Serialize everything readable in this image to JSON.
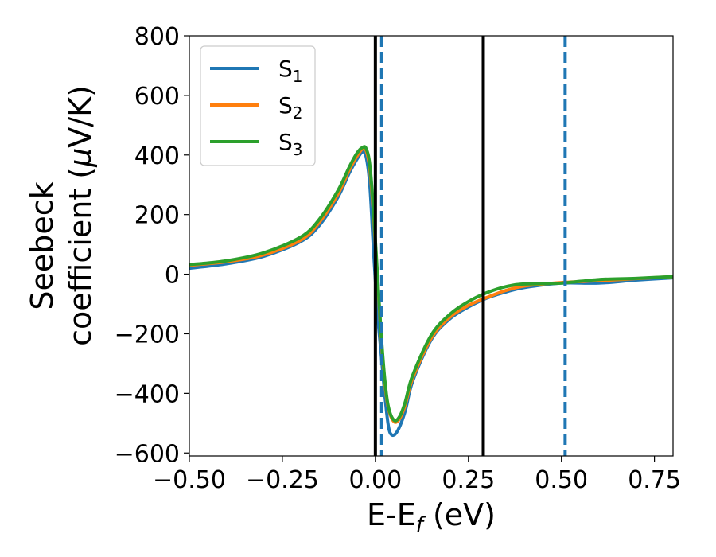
{
  "chart_data": {
    "type": "line",
    "title": "",
    "xlabel": "E-E",
    "xlabel_sub": "f",
    "xlabel_suffix": " (eV)",
    "ylabel_line1": "Seebeck",
    "ylabel_line2_prefix": "coefficient  (",
    "ylabel_mu": "μ",
    "ylabel_line2_suffix": "V/K)",
    "xlim": [
      -0.5,
      0.8
    ],
    "ylim": [
      -610,
      800
    ],
    "xticks": [
      -0.5,
      -0.25,
      0.0,
      0.25,
      0.5,
      0.75
    ],
    "xtick_labels": [
      "−0.50",
      "−0.25",
      "0.00",
      "0.25",
      "0.50",
      "0.75"
    ],
    "yticks": [
      -600,
      -400,
      -200,
      0,
      200,
      400,
      600,
      800
    ],
    "ytick_labels": [
      "−600",
      "−400",
      "−200",
      "0",
      "200",
      "400",
      "600",
      "800"
    ],
    "grid": false,
    "legend_position": "top-left",
    "vlines": [
      {
        "x": 0.0,
        "color": "#000000",
        "style": "solid"
      },
      {
        "x": 0.29,
        "color": "#000000",
        "style": "solid"
      },
      {
        "x": 0.017,
        "color": "#1f77b4",
        "style": "dashed"
      },
      {
        "x": 0.51,
        "color": "#1f77b4",
        "style": "dashed"
      }
    ],
    "series": [
      {
        "name": "S",
        "sub": "1",
        "color": "#1f77b4",
        "points": [
          [
            -0.5,
            20
          ],
          [
            -0.4,
            35
          ],
          [
            -0.3,
            60
          ],
          [
            -0.2,
            110
          ],
          [
            -0.15,
            165
          ],
          [
            -0.1,
            260
          ],
          [
            -0.07,
            340
          ],
          [
            -0.05,
            385
          ],
          [
            -0.035,
            410
          ],
          [
            -0.025,
            395
          ],
          [
            -0.015,
            300
          ],
          [
            -0.005,
            80
          ],
          [
            0.005,
            -120
          ],
          [
            0.015,
            -260
          ],
          [
            0.025,
            -400
          ],
          [
            0.035,
            -510
          ],
          [
            0.045,
            -540
          ],
          [
            0.06,
            -525
          ],
          [
            0.08,
            -460
          ],
          [
            0.1,
            -360
          ],
          [
            0.15,
            -220
          ],
          [
            0.2,
            -150
          ],
          [
            0.25,
            -110
          ],
          [
            0.3,
            -80
          ],
          [
            0.35,
            -60
          ],
          [
            0.4,
            -45
          ],
          [
            0.5,
            -30
          ],
          [
            0.6,
            -30
          ],
          [
            0.7,
            -20
          ],
          [
            0.8,
            -12
          ]
        ]
      },
      {
        "name": "S",
        "sub": "2",
        "color": "#ff7f0e",
        "points": [
          [
            -0.5,
            30
          ],
          [
            -0.4,
            42
          ],
          [
            -0.3,
            65
          ],
          [
            -0.2,
            115
          ],
          [
            -0.15,
            175
          ],
          [
            -0.1,
            270
          ],
          [
            -0.07,
            350
          ],
          [
            -0.05,
            395
          ],
          [
            -0.035,
            420
          ],
          [
            -0.025,
            415
          ],
          [
            -0.015,
            355
          ],
          [
            -0.005,
            200
          ],
          [
            0.005,
            0
          ],
          [
            0.015,
            -200
          ],
          [
            0.025,
            -360
          ],
          [
            0.035,
            -450
          ],
          [
            0.05,
            -495
          ],
          [
            0.065,
            -485
          ],
          [
            0.08,
            -440
          ],
          [
            0.1,
            -350
          ],
          [
            0.15,
            -215
          ],
          [
            0.2,
            -145
          ],
          [
            0.25,
            -105
          ],
          [
            0.3,
            -78
          ],
          [
            0.35,
            -55
          ],
          [
            0.4,
            -40
          ],
          [
            0.5,
            -28
          ],
          [
            0.6,
            -22
          ],
          [
            0.7,
            -15
          ],
          [
            0.8,
            -8
          ]
        ]
      },
      {
        "name": "S",
        "sub": "3",
        "color": "#2ca02c",
        "points": [
          [
            -0.5,
            32
          ],
          [
            -0.4,
            45
          ],
          [
            -0.3,
            72
          ],
          [
            -0.2,
            125
          ],
          [
            -0.15,
            185
          ],
          [
            -0.1,
            282
          ],
          [
            -0.07,
            360
          ],
          [
            -0.05,
            405
          ],
          [
            -0.035,
            425
          ],
          [
            -0.025,
            422
          ],
          [
            -0.015,
            368
          ],
          [
            -0.005,
            215
          ],
          [
            0.005,
            10
          ],
          [
            0.015,
            -190
          ],
          [
            0.025,
            -350
          ],
          [
            0.035,
            -445
          ],
          [
            0.05,
            -490
          ],
          [
            0.065,
            -478
          ],
          [
            0.08,
            -430
          ],
          [
            0.1,
            -340
          ],
          [
            0.15,
            -205
          ],
          [
            0.2,
            -135
          ],
          [
            0.25,
            -92
          ],
          [
            0.3,
            -62
          ],
          [
            0.35,
            -42
          ],
          [
            0.4,
            -33
          ],
          [
            0.5,
            -30
          ],
          [
            0.6,
            -18
          ],
          [
            0.7,
            -14
          ],
          [
            0.8,
            -8
          ]
        ]
      }
    ]
  }
}
